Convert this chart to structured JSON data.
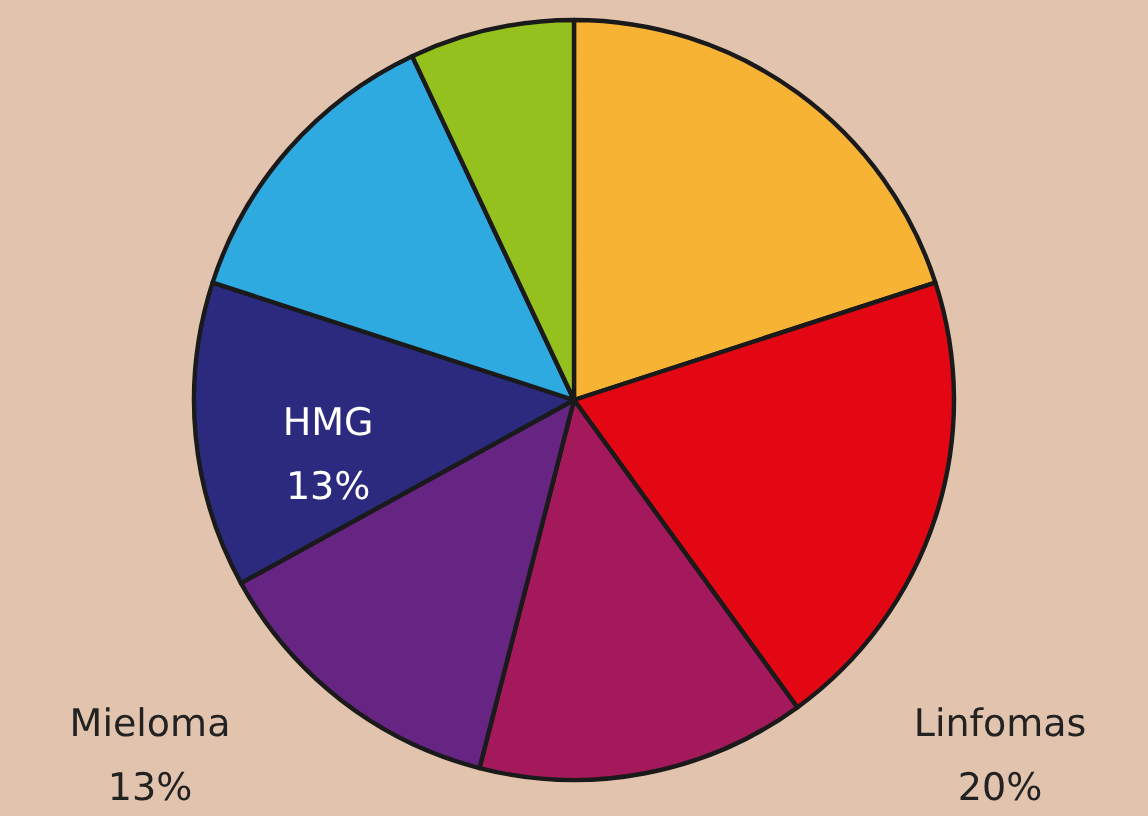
{
  "chart_data": {
    "type": "pie",
    "categories": [
      null,
      "Linfomas",
      null,
      "Mieloma",
      "HMG",
      null,
      null
    ],
    "values": [
      20,
      20,
      14,
      13,
      13,
      13,
      7
    ],
    "value_labels": [
      null,
      "20%",
      null,
      "13%",
      "13%",
      null,
      null
    ],
    "colors": [
      "#f7b334",
      "#e30613",
      "#a3195b",
      "#662483",
      "#2b2a7f",
      "#2eaae1",
      "#95c11f"
    ]
  }
}
